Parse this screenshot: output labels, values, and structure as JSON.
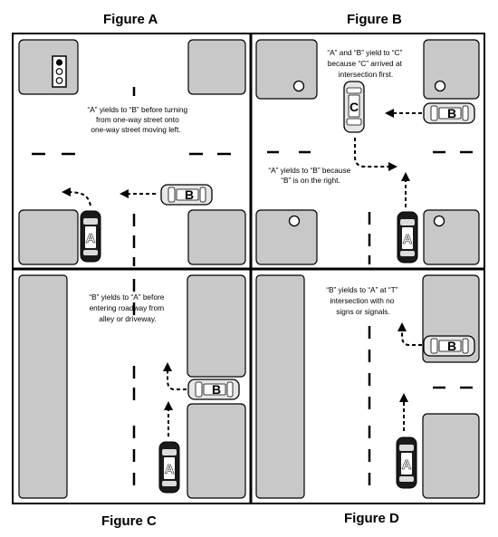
{
  "figures": {
    "a": {
      "title": "Figure A",
      "caption": [
        "“A” yields to “B” before turning",
        "from one-way street onto",
        "one-way street moving left."
      ],
      "cars": [
        "A",
        "B"
      ]
    },
    "b": {
      "title": "Figure B",
      "caption_top": [
        "“A” and “B” yield to “C”",
        "because “C” arrived at",
        "intersection first."
      ],
      "caption_mid": [
        "“A” yields to “B” because",
        "“B” is on the right."
      ],
      "cars": [
        "A",
        "B",
        "C"
      ]
    },
    "c": {
      "title": "Figure C",
      "caption": [
        "“B” yields to “A” before",
        "entering roadway from",
        "alley or driveway."
      ],
      "cars": [
        "A",
        "B"
      ]
    },
    "d": {
      "title": "Figure D",
      "caption": [
        "“B” yields to “A” at “T”",
        "intersection with no",
        "signs or signals."
      ],
      "cars": [
        "A",
        "B"
      ]
    }
  },
  "colors": {
    "curb": "#c8c8c8",
    "road": "#ffffff",
    "line": "#000000",
    "car_dark": "#1a1a1a",
    "car_light": "#e6e6e6"
  }
}
